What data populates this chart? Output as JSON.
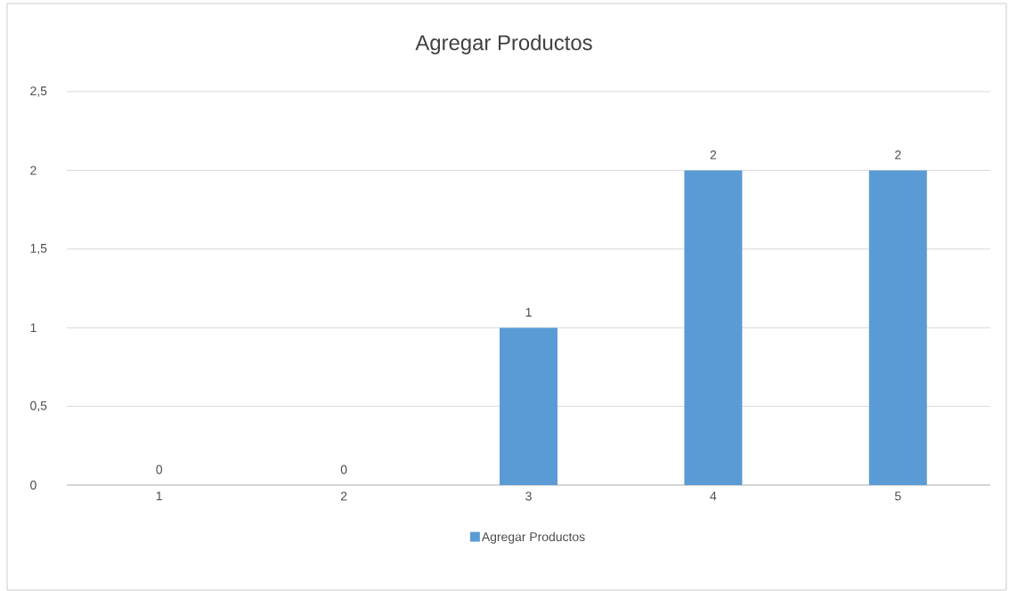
{
  "chart_data": {
    "type": "bar",
    "title": "Agregar Productos",
    "categories": [
      "1",
      "2",
      "3",
      "4",
      "5"
    ],
    "series": [
      {
        "name": "Agregar Productos",
        "color": "#5b9bd5",
        "values": [
          0,
          0,
          1,
          2,
          2
        ]
      }
    ],
    "ylim": [
      0,
      2.5
    ],
    "yticks": [
      {
        "value": 0,
        "label": "0"
      },
      {
        "value": 0.5,
        "label": "0,5"
      },
      {
        "value": 1,
        "label": "1"
      },
      {
        "value": 1.5,
        "label": "1,5"
      },
      {
        "value": 2,
        "label": "2"
      },
      {
        "value": 2.5,
        "label": "2,5"
      }
    ],
    "grid": "y",
    "legend": "bottom",
    "data_labels": true
  }
}
